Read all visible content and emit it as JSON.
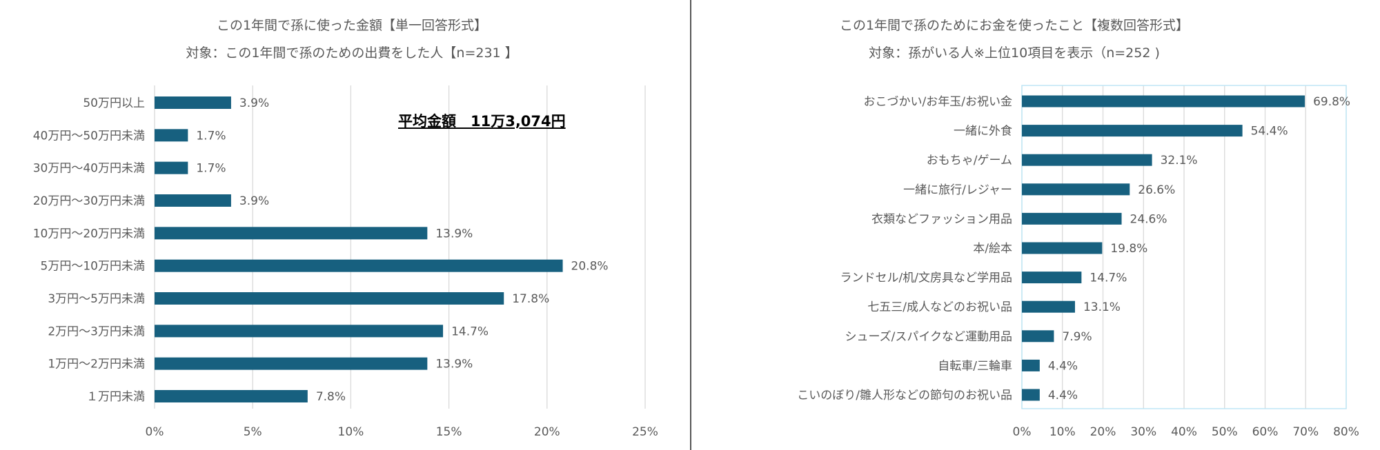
{
  "chart_data": [
    {
      "type": "bar",
      "orientation": "horizontal",
      "title": "この1年間で孫に使った金額【単一回答形式】",
      "subtitle": "対象：この1年間で孫のための出費をした人【n=231 】",
      "annotation": "平均金額　11万3,074円",
      "categories": [
        "50万円以上",
        "40万円～50万円未満",
        "30万円～40万円未満",
        "20万円～30万円未満",
        "10万円～20万円未満",
        "5万円～10万円未満",
        "3万円～5万円未満",
        "2万円～3万円未満",
        "1万円～2万円未満",
        "１万円未満"
      ],
      "values": [
        3.9,
        1.7,
        1.7,
        3.9,
        13.9,
        20.8,
        17.8,
        14.7,
        13.9,
        7.8
      ],
      "data_labels": [
        "3.9%",
        "1.7%",
        "1.7%",
        "3.9%",
        "13.9%",
        "20.8%",
        "17.8%",
        "14.7%",
        "13.9%",
        "7.8%"
      ],
      "xlim": [
        0,
        25
      ],
      "xticks": [
        "0%",
        "5%",
        "10%",
        "15%",
        "20%",
        "25%"
      ],
      "grid": true,
      "bar_color": "#17607f"
    },
    {
      "type": "bar",
      "orientation": "horizontal",
      "title": "この1年間で孫のためにお金を使ったこと【複数回答形式】",
      "subtitle": "対象：孫がいる人※上位10項目を表示（n=252 )",
      "categories": [
        "おこづかい/お年玉/お祝い金",
        "一緒に外食",
        "おもちゃ/ゲーム",
        "一緒に旅行/レジャー",
        "衣類などファッション用品",
        "本/絵本",
        "ランドセル/机/文房具など学用品",
        "七五三/成人などのお祝い品",
        "シューズ/スパイクなど運動用品",
        "自転車/三輪車",
        "こいのぼり/雛人形などの節句のお祝い品"
      ],
      "values": [
        69.8,
        54.4,
        32.1,
        26.6,
        24.6,
        19.8,
        14.7,
        13.1,
        7.9,
        4.4,
        4.4
      ],
      "data_labels": [
        "69.8%",
        "54.4%",
        "32.1%",
        "26.6%",
        "24.6%",
        "19.8%",
        "14.7%",
        "13.1%",
        "7.9%",
        "4.4%",
        "4.4%"
      ],
      "xlim": [
        0,
        80
      ],
      "xticks": [
        "0%",
        "10%",
        "20%",
        "30%",
        "40%",
        "50%",
        "60%",
        "70%",
        "80%"
      ],
      "grid": true,
      "bar_color": "#17607f"
    }
  ]
}
